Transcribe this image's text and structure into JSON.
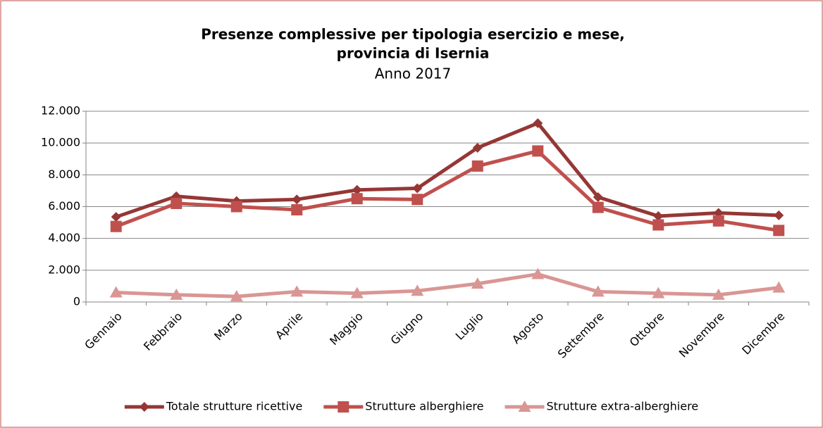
{
  "chart_data": {
    "type": "line",
    "title": [
      "Presenze complessive per tipologia esercizio e mese,",
      "provincia di Isernia"
    ],
    "subtitle": "Anno 2017",
    "categories": [
      "Gennaio",
      "Febbraio",
      "Marzo",
      "Aprile",
      "Maggio",
      "Giugno",
      "Luglio",
      "Agosto",
      "Settembre",
      "Ottobre",
      "Novembre",
      "Dicembre"
    ],
    "series": [
      {
        "name": "Totale strutture ricettive",
        "color": "#953735",
        "marker": "diamond",
        "values": [
          5350,
          6650,
          6350,
          6450,
          7050,
          7150,
          9700,
          11250,
          6600,
          5400,
          5600,
          5450
        ]
      },
      {
        "name": "Strutture alberghiere",
        "color": "#c0504d",
        "marker": "square",
        "values": [
          4750,
          6200,
          6000,
          5800,
          6500,
          6450,
          8550,
          9500,
          5950,
          4850,
          5100,
          4500
        ]
      },
      {
        "name": "Strutture extra-alberghiere",
        "color": "#d99694",
        "marker": "triangle",
        "values": [
          600,
          450,
          350,
          650,
          550,
          700,
          1150,
          1750,
          650,
          550,
          450,
          900
        ]
      }
    ],
    "ylim": [
      0,
      12000
    ],
    "yticks": [
      0,
      {
        "value": 2000,
        "label": "2.000"
      },
      {
        "value": 4000,
        "label": "4.000"
      },
      {
        "value": 6000,
        "label": "6.000"
      },
      {
        "value": 8000,
        "label": "8.000"
      },
      {
        "value": 10000,
        "label": "10.000"
      },
      {
        "value": 12000,
        "label": "12.000"
      }
    ],
    "grid": true,
    "legend": "bottom"
  }
}
